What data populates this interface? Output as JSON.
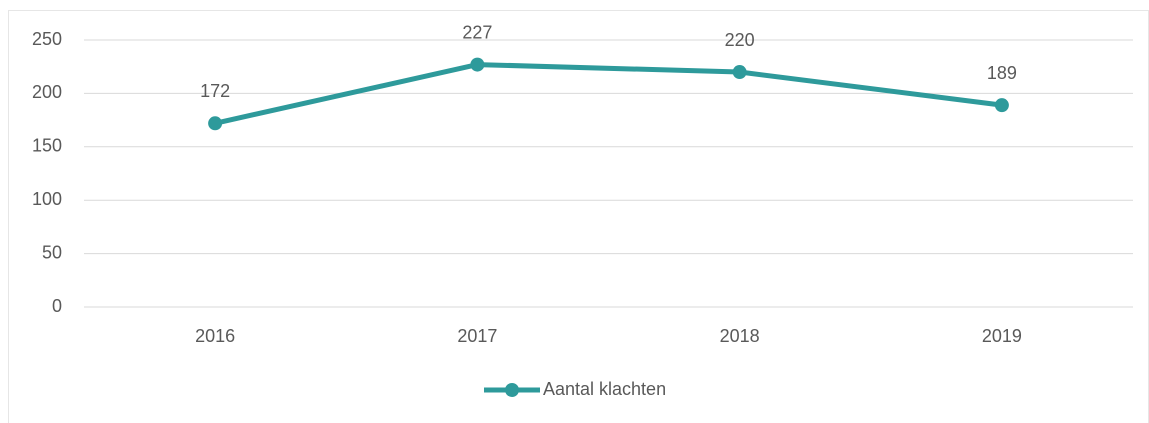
{
  "chart_data": {
    "type": "line",
    "categories": [
      "2016",
      "2017",
      "2018",
      "2019"
    ],
    "series": [
      {
        "name": "Aantal klachten",
        "color": "#2e9a9b",
        "values": [
          172,
          227,
          220,
          189
        ]
      }
    ],
    "ylim": [
      0,
      250
    ],
    "yticks": [
      0,
      50,
      100,
      150,
      200,
      250
    ],
    "grid": true,
    "legend": "bottom"
  }
}
